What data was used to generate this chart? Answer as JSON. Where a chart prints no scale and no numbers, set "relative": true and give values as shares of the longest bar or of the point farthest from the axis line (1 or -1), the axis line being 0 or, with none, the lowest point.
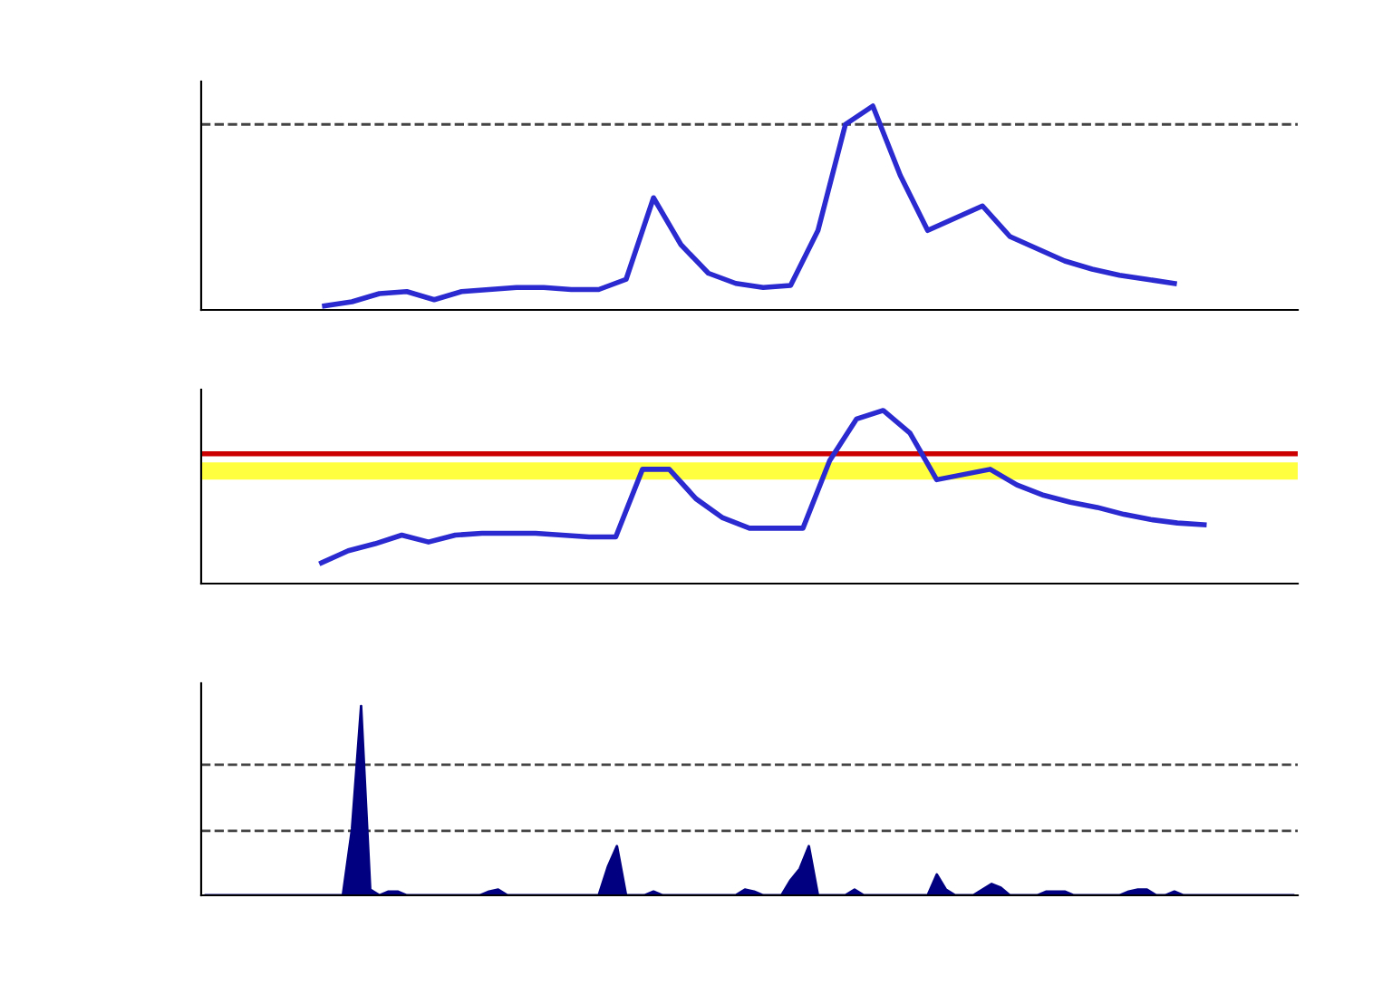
{
  "chart_data": [
    {
      "type": "line",
      "relative": true,
      "tick_labels": false,
      "categories": [
        null,
        null,
        null,
        null,
        null,
        null,
        null,
        null,
        null,
        null,
        null,
        null,
        null,
        null,
        null,
        null,
        null,
        null,
        null,
        null,
        null,
        null,
        null,
        null,
        null,
        null,
        null,
        null,
        null,
        null,
        null,
        null,
        null,
        null,
        null,
        null,
        null,
        null,
        null,
        null
      ],
      "series": [
        {
          "color": "#2a2ad0",
          "values": [
            null,
            null,
            null,
            null,
            0.02,
            0.04,
            0.08,
            0.09,
            0.05,
            0.09,
            0.1,
            0.11,
            0.11,
            0.1,
            0.1,
            0.15,
            0.55,
            0.32,
            0.18,
            0.13,
            0.11,
            0.12,
            0.39,
            0.91,
            1,
            0.66,
            0.39,
            0.45,
            0.51,
            0.36,
            0.3,
            0.24,
            0.2,
            0.17,
            0.15,
            0.13,
            null,
            null,
            null,
            null
          ]
        }
      ],
      "ref_lines": [
        {
          "axis": "y",
          "value": 0.91,
          "color": "#444444",
          "line_style": "dashed"
        }
      ]
    },
    {
      "type": "line",
      "relative": true,
      "tick_labels": false,
      "categories": [
        null,
        null,
        null,
        null,
        null,
        null,
        null,
        null,
        null,
        null,
        null,
        null,
        null,
        null,
        null,
        null,
        null,
        null,
        null,
        null,
        null,
        null,
        null,
        null,
        null,
        null,
        null,
        null,
        null,
        null,
        null,
        null,
        null,
        null,
        null,
        null,
        null,
        null,
        null,
        null,
        null
      ],
      "series": [
        {
          "color": "#2a2ad0",
          "values": [
            null,
            null,
            null,
            null,
            0.12,
            0.19,
            0.23,
            0.28,
            0.24,
            0.28,
            0.29,
            0.29,
            0.29,
            0.28,
            0.27,
            0.27,
            0.66,
            0.66,
            0.49,
            0.38,
            0.32,
            0.32,
            0.32,
            0.71,
            0.95,
            1,
            0.87,
            0.6,
            0.63,
            0.66,
            0.57,
            0.51,
            0.47,
            0.44,
            0.4,
            0.37,
            0.35,
            0.34,
            null,
            null,
            null
          ]
        }
      ],
      "ref_lines": [
        {
          "axis": "y",
          "value": 0.75,
          "color": "#cc0000",
          "line_style": "solid"
        }
      ],
      "bands": [
        {
          "axis": "y",
          "from": 0.6,
          "to": 0.7,
          "color": "#ffff40"
        }
      ]
    },
    {
      "type": "area",
      "relative": true,
      "tick_labels": false,
      "categories": [
        null,
        null,
        null,
        null,
        null,
        null,
        null,
        null,
        null,
        null,
        null,
        null,
        null,
        null,
        null,
        null,
        null,
        null,
        null,
        null,
        null,
        null,
        null,
        null,
        null,
        null,
        null,
        null,
        null,
        null,
        null,
        null,
        null,
        null,
        null,
        null,
        null,
        null,
        null,
        null,
        null,
        null,
        null,
        null,
        null,
        null,
        null,
        null,
        null,
        null,
        null,
        null,
        null,
        null,
        null,
        null,
        null,
        null,
        null,
        null,
        null,
        null,
        null,
        null,
        null,
        null,
        null,
        null,
        null,
        null,
        null,
        null,
        null,
        null,
        null,
        null,
        null,
        null,
        null,
        null,
        null,
        null,
        null,
        null,
        null,
        null,
        null,
        null,
        null,
        null,
        null,
        null,
        null,
        null,
        null,
        null,
        null,
        null,
        null,
        null,
        null,
        null,
        null,
        null,
        null,
        null,
        null,
        null,
        null,
        null,
        null,
        null,
        null,
        null,
        null,
        null,
        null,
        null,
        null,
        null
      ],
      "color": "#000080",
      "values": [
        0,
        0,
        0,
        0,
        0,
        0,
        0,
        0,
        0,
        0,
        0,
        0,
        0,
        0,
        0,
        0,
        0.35,
        1,
        0.03,
        0,
        0.02,
        0.02,
        0,
        0,
        0,
        0,
        0,
        0,
        0,
        0,
        0,
        0.02,
        0.03,
        0,
        0,
        0,
        0,
        0,
        0,
        0,
        0,
        0,
        0,
        0,
        0.15,
        0.26,
        0,
        0,
        0,
        0.02,
        0,
        0,
        0,
        0,
        0,
        0,
        0,
        0,
        0,
        0.03,
        0.02,
        0,
        0,
        0,
        0.08,
        0.14,
        0.26,
        0,
        0,
        0,
        0,
        0.03,
        0,
        0,
        0,
        0,
        0,
        0,
        0,
        0,
        0.11,
        0.03,
        0,
        0,
        0,
        0.03,
        0.06,
        0.04,
        0,
        0,
        0,
        0,
        0.02,
        0.02,
        0.02,
        0,
        0,
        0,
        0,
        0,
        0,
        0.02,
        0.03,
        0.03,
        0,
        0,
        0.02,
        0,
        0,
        0,
        0,
        0,
        0,
        0,
        0,
        0,
        0,
        0,
        0,
        0
      ],
      "ref_lines": [
        {
          "axis": "y",
          "value": 0.69,
          "color": "#444444",
          "line_style": "dashed"
        },
        {
          "axis": "y",
          "value": 0.34,
          "color": "#444444",
          "line_style": "dashed"
        }
      ]
    }
  ]
}
